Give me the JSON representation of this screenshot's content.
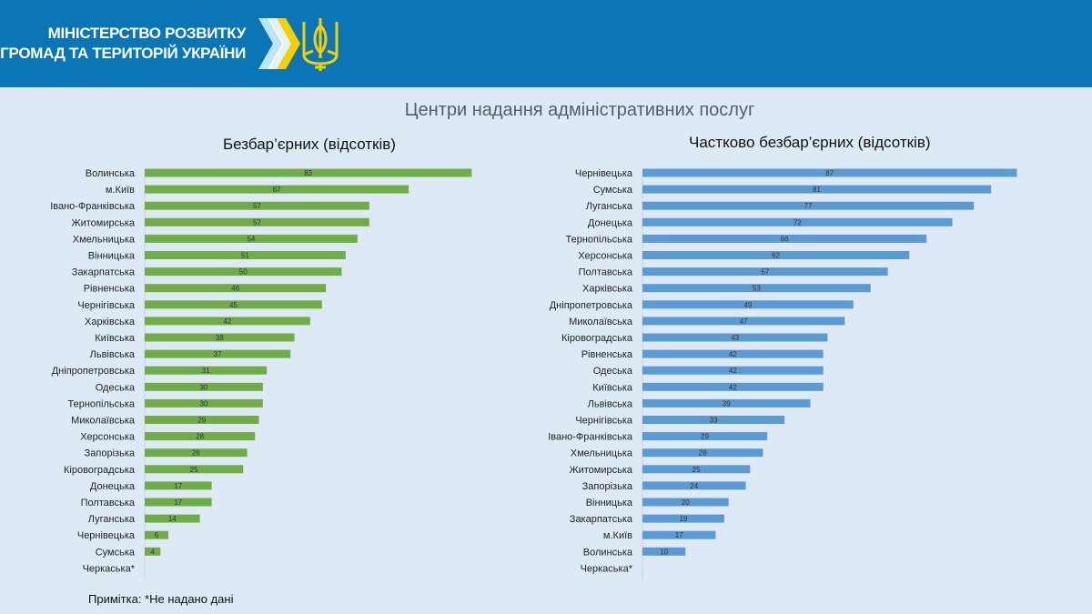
{
  "header": {
    "org_line1": "МІНІСТЕРСТВО РОЗВИТКУ",
    "org_line2": "ГРОМАД ТА ТЕРИТОРІЙ  УКРАЇНИ"
  },
  "page_title": "Центри надання адміністративних послуг",
  "note": "Примітка: *Не надано дані",
  "colors": {
    "header_bg": "#0a76b5",
    "green": "#70ad47",
    "blue": "#5b9bd5",
    "background": "#dde9f5"
  },
  "chart_data": [
    {
      "type": "bar",
      "orientation": "horizontal",
      "title": "Безбар’єрних (відсотків)",
      "categories": [
        "Волинська",
        "м.Київ",
        "Івано-Франківська",
        "Житомирська",
        "Хмельницька",
        "Вінницька",
        "Закарпатська",
        "Рівненська",
        "Чернігівська",
        "Харківська",
        "Київська",
        "Львівська",
        "Дніпропетровська",
        "Одеська",
        "Тернопільська",
        "Миколаївська",
        "Херсонська",
        "Запорізька",
        "Кіровоградська",
        "Донецька",
        "Полтавська",
        "Луганська",
        "Чернівецька",
        "Сумська",
        "Черкаська*"
      ],
      "values": [
        83,
        67,
        57,
        57,
        54,
        51,
        50,
        46,
        45,
        42,
        38,
        37,
        31,
        30,
        30,
        29,
        28,
        26,
        25,
        17,
        17,
        14,
        6,
        4,
        null
      ],
      "color": "#70ad47",
      "data_labels": true
    },
    {
      "type": "bar",
      "orientation": "horizontal",
      "title": "Частково безбар’єрних (відсотків)",
      "categories": [
        "Чернівецька",
        "Сумська",
        "Луганська",
        "Донецька",
        "Тернопільська",
        "Херсонська",
        "Полтавська",
        "Харківська",
        "Дніпропетровська",
        "Миколаївська",
        "Кіровоградська",
        "Рівненська",
        "Одеська",
        "Київська",
        "Львівська",
        "Чернігівська",
        "Івано-Франківська",
        "Хмельницька",
        "Житомирська",
        "Запорізька",
        "Вінницька",
        "Закарпатська",
        "м.Київ",
        "Волинська",
        "Черкаська*"
      ],
      "values": [
        87,
        81,
        77,
        72,
        66,
        62,
        57,
        53,
        49,
        47,
        43,
        42,
        42,
        42,
        39,
        33,
        29,
        28,
        25,
        24,
        20,
        19,
        17,
        10,
        null
      ],
      "color": "#5b9bd5",
      "data_labels": true
    }
  ]
}
